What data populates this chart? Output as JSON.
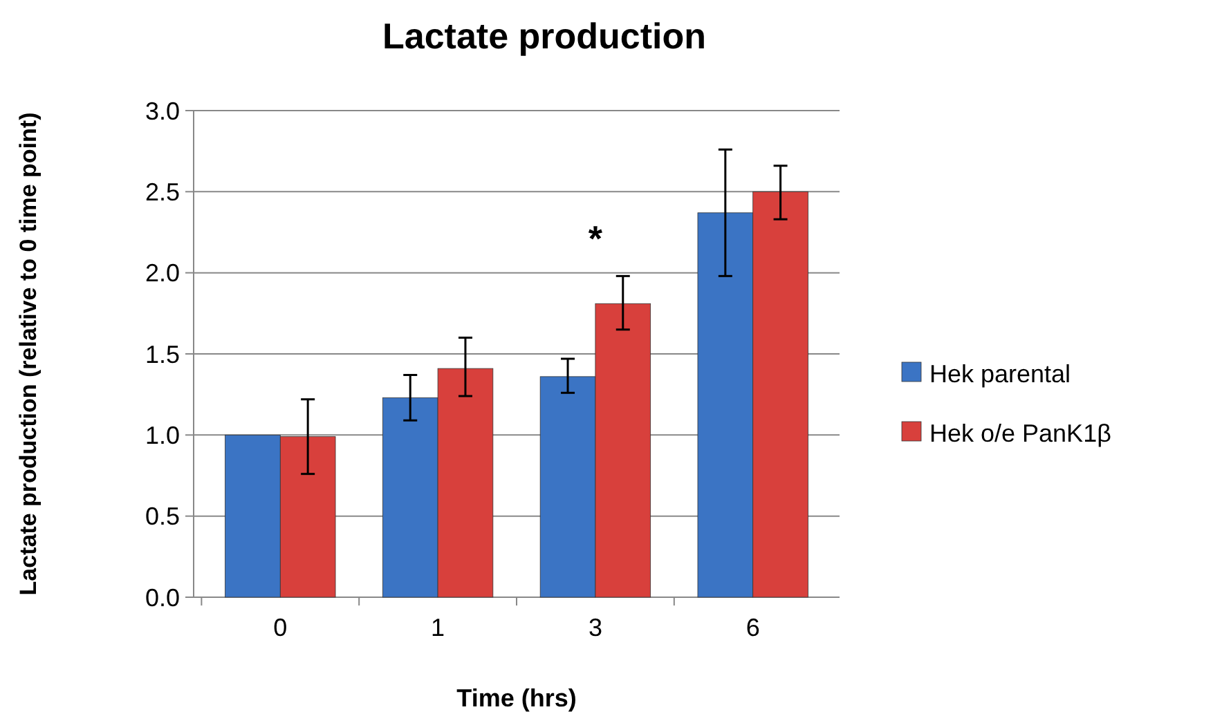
{
  "chart_data": {
    "type": "bar",
    "title": "Lactate production",
    "xlabel": "Time (hrs)",
    "ylabel": "Lactate production (relative to 0 time point)",
    "categories": [
      "0",
      "1",
      "3",
      "6"
    ],
    "series": [
      {
        "name": "Hek parental",
        "color": "#3b74c4",
        "values": [
          1.0,
          1.23,
          1.36,
          2.37
        ],
        "errors": [
          null,
          [
            1.09,
            1.37
          ],
          [
            1.26,
            1.47
          ],
          [
            1.98,
            2.76
          ]
        ]
      },
      {
        "name": "Hek o/e PanK1β",
        "color": "#d8403c",
        "values": [
          0.99,
          1.41,
          1.81,
          2.5
        ],
        "errors": [
          [
            0.76,
            1.22
          ],
          [
            1.24,
            1.6
          ],
          [
            1.65,
            1.98
          ],
          [
            2.33,
            2.66
          ]
        ]
      }
    ],
    "annotations": [
      {
        "text": "*",
        "x": "3",
        "y": 1.81
      }
    ],
    "ylim": [
      0,
      3
    ],
    "yticks": [
      {
        "value": 0,
        "label": "0.0"
      },
      {
        "value": 0.5,
        "label": "0.5"
      },
      {
        "value": 1,
        "label": "1.0"
      },
      {
        "value": 1.5,
        "label": "1.5"
      },
      {
        "value": 2,
        "label": "2.0"
      },
      {
        "value": 2.5,
        "label": "2.5"
      },
      {
        "value": 3,
        "label": "3.0"
      }
    ],
    "grid": "y",
    "legend": "right"
  }
}
